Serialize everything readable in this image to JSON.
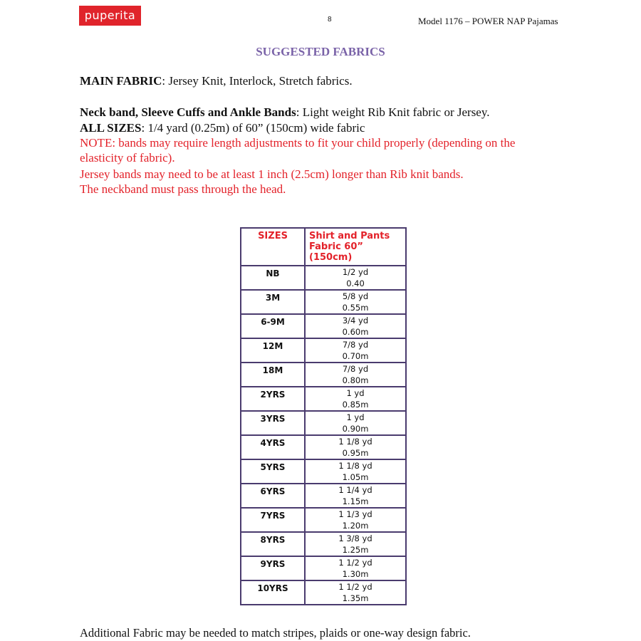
{
  "header": {
    "logo": "puperita",
    "page_number": "8",
    "model": "Model 1176 – POWER NAP Pajamas"
  },
  "title": "SUGGESTED FABRICS",
  "main_fabric": {
    "label": "MAIN FABRIC",
    "text": ": Jersey Knit, Interlock, Stretch fabrics."
  },
  "bands": {
    "label": "Neck band, Sleeve Cuffs and Ankle Bands",
    "text": ": Light weight Rib Knit fabric or Jersey."
  },
  "all_sizes": {
    "label": "ALL SIZES",
    "text": ": 1/4 yard (0.25m) of  60” (150cm) wide fabric"
  },
  "note": {
    "label": "NOTE",
    "line1": ": bands may require length adjustments to fit your child properly (depending on the",
    "line2": "elasticity of fabric).",
    "line3": "Jersey bands may need to be at least 1 inch (2.5cm) longer than Rib knit bands.",
    "line4": "The neckband must pass through the head."
  },
  "table": {
    "headers": [
      "SIZES",
      "Shirt and Pants",
      "Fabric 60” (150cm)"
    ],
    "rows": [
      {
        "size": "NB",
        "yd": "1/2 yd",
        "m": "0.40"
      },
      {
        "size": "3M",
        "yd": "5/8 yd",
        "m": "0.55m"
      },
      {
        "size": "6-9M",
        "yd": "3/4 yd",
        "m": "0.60m"
      },
      {
        "size": "12M",
        "yd": "7/8 yd",
        "m": "0.70m"
      },
      {
        "size": "18M",
        "yd": "7/8 yd",
        "m": "0.80m"
      },
      {
        "size": "2YRS",
        "yd": "1 yd",
        "m": "0.85m"
      },
      {
        "size": "3YRS",
        "yd": "1 yd",
        "m": "0.90m"
      },
      {
        "size": "4YRS",
        "yd": "1 1/8 yd",
        "m": "0.95m"
      },
      {
        "size": "5YRS",
        "yd": "1 1/8 yd",
        "m": "1.05m"
      },
      {
        "size": "6YRS",
        "yd": "1 1/4 yd",
        "m": "1.15m"
      },
      {
        "size": "7YRS",
        "yd": "1 1/3 yd",
        "m": "1.20m"
      },
      {
        "size": "8YRS",
        "yd": "1 3/8 yd",
        "m": "1.25m"
      },
      {
        "size": "9YRS",
        "yd": "1 1/2 yd",
        "m": "1.30m"
      },
      {
        "size": "10YRS",
        "yd": "1 1/2 yd",
        "m": "1.35m"
      }
    ]
  },
  "footer": "Additional Fabric may be needed to match stripes, plaids or one-way design fabric."
}
